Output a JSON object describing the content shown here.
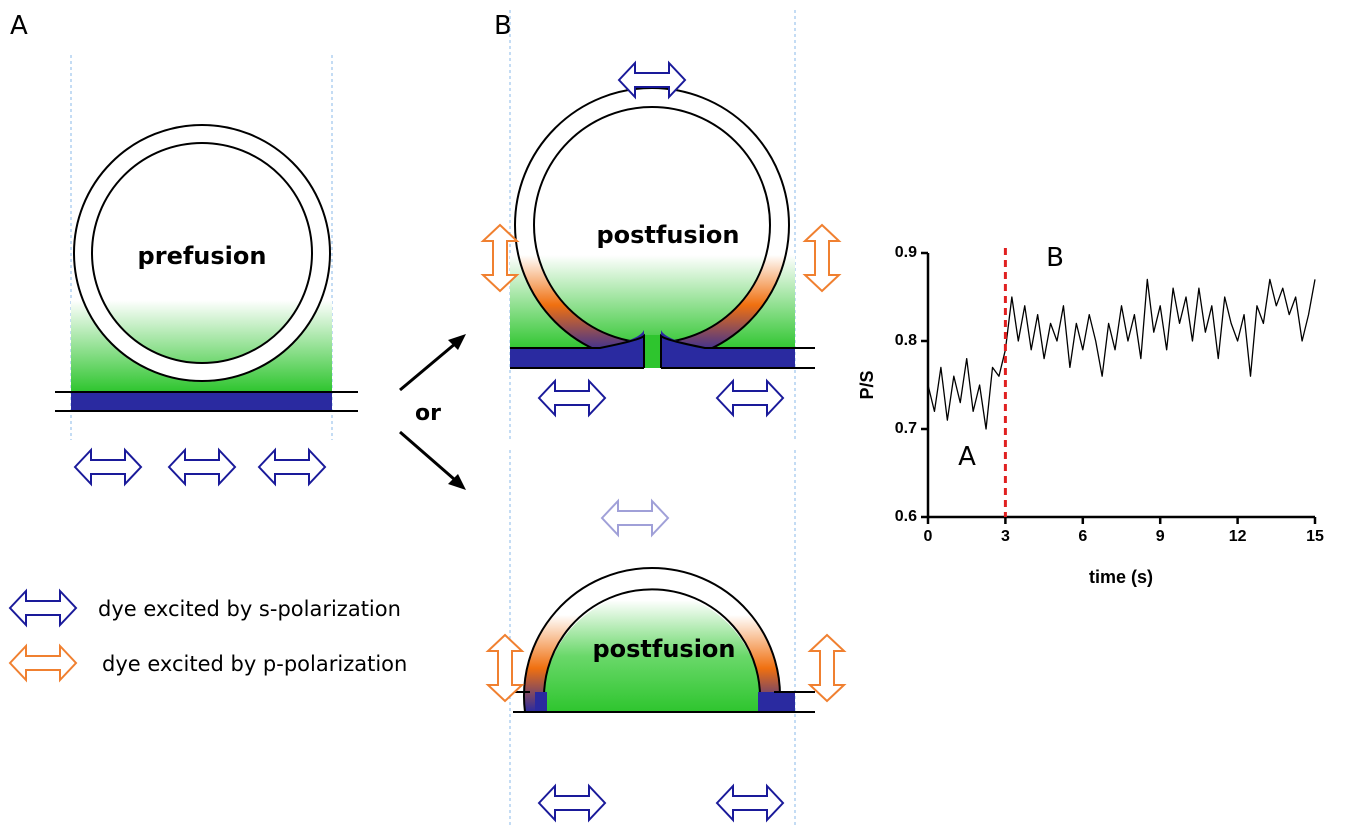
{
  "panel_labels": [
    "A",
    "B"
  ],
  "diagram": {
    "prefusion": "prefusion",
    "postfusion_pore": "postfusion",
    "postfusion_full": "postfusion",
    "or": "or"
  },
  "legend": [
    {
      "text": "dye excited by s-polarization",
      "color": "#1a1a9a"
    },
    {
      "text": "dye excited by p-polarization",
      "color": "#f08030"
    }
  ],
  "chart_data": {
    "type": "line",
    "xlabel": "time (s)",
    "ylabel": "P/S",
    "xlim": [
      0,
      15
    ],
    "ylim": [
      0.6,
      0.9
    ],
    "xticks": [
      0,
      3,
      6,
      9,
      12,
      15
    ],
    "yticks": [
      0.6,
      0.7,
      0.8,
      0.9
    ],
    "x": [
      0,
      0.25,
      0.5,
      0.75,
      1,
      1.25,
      1.5,
      1.75,
      2,
      2.25,
      2.5,
      2.75,
      3,
      3.25,
      3.5,
      3.75,
      4,
      4.25,
      4.5,
      4.75,
      5,
      5.25,
      5.5,
      5.75,
      6,
      6.25,
      6.5,
      6.75,
      7,
      7.25,
      7.5,
      7.75,
      8,
      8.25,
      8.5,
      8.75,
      9,
      9.25,
      9.5,
      9.75,
      10,
      10.25,
      10.5,
      10.75,
      11,
      11.25,
      11.5,
      11.75,
      12,
      12.25,
      12.5,
      12.75,
      13,
      13.25,
      13.5,
      13.75,
      14,
      14.25,
      14.5,
      14.75,
      15
    ],
    "series": [
      {
        "color": "#000000",
        "values": [
          0.75,
          0.72,
          0.77,
          0.71,
          0.76,
          0.73,
          0.78,
          0.72,
          0.75,
          0.7,
          0.77,
          0.76,
          0.79,
          0.85,
          0.8,
          0.84,
          0.79,
          0.83,
          0.78,
          0.82,
          0.8,
          0.84,
          0.77,
          0.82,
          0.79,
          0.83,
          0.8,
          0.76,
          0.82,
          0.79,
          0.84,
          0.8,
          0.83,
          0.78,
          0.87,
          0.81,
          0.84,
          0.79,
          0.86,
          0.82,
          0.85,
          0.8,
          0.86,
          0.81,
          0.84,
          0.78,
          0.85,
          0.82,
          0.8,
          0.83,
          0.76,
          0.84,
          0.82,
          0.87,
          0.84,
          0.86,
          0.83,
          0.85,
          0.8,
          0.83,
          0.87
        ]
      }
    ],
    "vline": {
      "x": 3,
      "color": "#e02020"
    },
    "annotations": [
      {
        "text": "A"
      },
      {
        "text": "B"
      }
    ]
  }
}
